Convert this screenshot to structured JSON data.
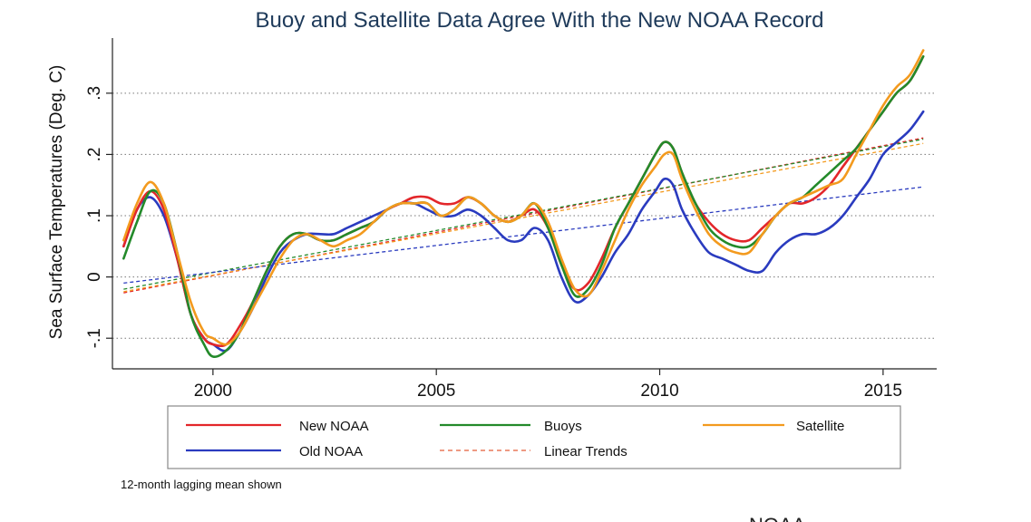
{
  "chart_data": {
    "type": "line",
    "title": "Buoy and Satellite Data Agree With the New NOAA Record",
    "ylabel": "Sea Surface Temperatures (Deg. C)",
    "xlabel": "",
    "xlim": [
      1997.75,
      2016.2
    ],
    "ylim": [
      -0.15,
      0.39
    ],
    "x_ticks": [
      2000,
      2005,
      2010,
      2015
    ],
    "x_tick_labels": [
      "2000",
      "2005",
      "2010",
      "2015"
    ],
    "y_ticks": [
      -0.1,
      0,
      0.1,
      0.2,
      0.3
    ],
    "y_tick_labels": [
      "-.1",
      "0",
      ".1",
      ".2",
      ".3"
    ],
    "grid": "horizontal dotted",
    "note": "12-month lagging mean shown",
    "watermark": "NOAA",
    "series": [
      {
        "name": "New NOAA",
        "color": "#e3262a",
        "style": "solid",
        "x": [
          1998.0,
          1998.3,
          1998.6,
          1998.9,
          1999.2,
          1999.5,
          1999.8,
          2000.0,
          2000.3,
          2000.6,
          2000.9,
          2001.2,
          2001.5,
          2001.8,
          2002.1,
          2002.4,
          2002.7,
          2003.0,
          2003.3,
          2003.6,
          2003.9,
          2004.2,
          2004.5,
          2004.8,
          2005.1,
          2005.4,
          2005.7,
          2006.0,
          2006.3,
          2006.6,
          2006.9,
          2007.2,
          2007.5,
          2007.8,
          2008.1,
          2008.4,
          2008.7,
          2009.0,
          2009.3,
          2009.6,
          2009.9,
          2010.1,
          2010.3,
          2010.5,
          2010.8,
          2011.1,
          2011.4,
          2011.7,
          2012.0,
          2012.3,
          2012.6,
          2012.9,
          2013.2,
          2013.5,
          2013.8,
          2014.1,
          2014.4,
          2014.7,
          2015.0,
          2015.3,
          2015.6,
          2015.9
        ],
        "y": [
          0.05,
          0.11,
          0.14,
          0.11,
          0.03,
          -0.06,
          -0.1,
          -0.11,
          -0.11,
          -0.08,
          -0.04,
          0.01,
          0.05,
          0.07,
          0.07,
          0.06,
          0.06,
          0.07,
          0.08,
          0.09,
          0.11,
          0.12,
          0.13,
          0.13,
          0.12,
          0.12,
          0.13,
          0.12,
          0.1,
          0.09,
          0.1,
          0.11,
          0.08,
          0.02,
          -0.02,
          -0.01,
          0.03,
          0.08,
          0.12,
          0.16,
          0.2,
          0.22,
          0.21,
          0.17,
          0.12,
          0.09,
          0.07,
          0.06,
          0.06,
          0.08,
          0.1,
          0.12,
          0.12,
          0.13,
          0.15,
          0.18,
          0.21,
          0.24,
          0.27,
          0.3,
          0.32,
          0.36
        ]
      },
      {
        "name": "Old NOAA",
        "color": "#2a3bbf",
        "style": "solid",
        "x": [
          1998.0,
          1998.3,
          1998.6,
          1998.9,
          1999.2,
          1999.5,
          1999.8,
          2000.0,
          2000.3,
          2000.6,
          2000.9,
          2001.2,
          2001.5,
          2001.8,
          2002.1,
          2002.4,
          2002.7,
          2003.0,
          2003.3,
          2003.6,
          2003.9,
          2004.2,
          2004.5,
          2004.8,
          2005.1,
          2005.4,
          2005.7,
          2006.0,
          2006.3,
          2006.6,
          2006.9,
          2007.2,
          2007.5,
          2007.8,
          2008.1,
          2008.4,
          2008.7,
          2009.0,
          2009.3,
          2009.6,
          2009.9,
          2010.1,
          2010.3,
          2010.5,
          2010.8,
          2011.1,
          2011.4,
          2011.7,
          2012.0,
          2012.3,
          2012.6,
          2012.9,
          2013.2,
          2013.5,
          2013.8,
          2014.1,
          2014.4,
          2014.7,
          2015.0,
          2015.3,
          2015.6,
          2015.9
        ],
        "y": [
          0.05,
          0.11,
          0.13,
          0.1,
          0.03,
          -0.06,
          -0.1,
          -0.11,
          -0.12,
          -0.09,
          -0.05,
          0.0,
          0.04,
          0.06,
          0.07,
          0.07,
          0.07,
          0.08,
          0.09,
          0.1,
          0.11,
          0.12,
          0.12,
          0.11,
          0.1,
          0.1,
          0.11,
          0.1,
          0.08,
          0.06,
          0.06,
          0.08,
          0.06,
          0.0,
          -0.04,
          -0.03,
          0.0,
          0.04,
          0.07,
          0.11,
          0.14,
          0.16,
          0.15,
          0.11,
          0.07,
          0.04,
          0.03,
          0.02,
          0.01,
          0.01,
          0.04,
          0.06,
          0.07,
          0.07,
          0.08,
          0.1,
          0.13,
          0.16,
          0.2,
          0.22,
          0.24,
          0.27
        ]
      },
      {
        "name": "Buoys",
        "color": "#238a2a",
        "style": "solid",
        "x": [
          1998.0,
          1998.3,
          1998.6,
          1998.9,
          1999.2,
          1999.5,
          1999.8,
          2000.0,
          2000.3,
          2000.6,
          2000.9,
          2001.2,
          2001.5,
          2001.8,
          2002.1,
          2002.4,
          2002.7,
          2003.0,
          2003.3,
          2003.6,
          2003.9,
          2004.2,
          2004.5,
          2004.8,
          2005.1,
          2005.4,
          2005.7,
          2006.0,
          2006.3,
          2006.6,
          2006.9,
          2007.2,
          2007.5,
          2007.8,
          2008.1,
          2008.4,
          2008.7,
          2009.0,
          2009.3,
          2009.6,
          2009.9,
          2010.1,
          2010.3,
          2010.5,
          2010.8,
          2011.1,
          2011.4,
          2011.7,
          2012.0,
          2012.3,
          2012.6,
          2012.9,
          2013.2,
          2013.5,
          2013.8,
          2014.1,
          2014.4,
          2014.7,
          2015.0,
          2015.3,
          2015.6,
          2015.9
        ],
        "y": [
          0.03,
          0.09,
          0.14,
          0.12,
          0.04,
          -0.06,
          -0.11,
          -0.13,
          -0.12,
          -0.09,
          -0.04,
          0.01,
          0.05,
          0.07,
          0.07,
          0.06,
          0.06,
          0.07,
          0.08,
          0.09,
          0.11,
          0.12,
          0.12,
          0.12,
          0.1,
          0.11,
          0.13,
          0.12,
          0.1,
          0.09,
          0.1,
          0.12,
          0.08,
          0.02,
          -0.03,
          -0.02,
          0.02,
          0.08,
          0.12,
          0.16,
          0.2,
          0.22,
          0.21,
          0.17,
          0.12,
          0.08,
          0.06,
          0.05,
          0.05,
          0.07,
          0.1,
          0.12,
          0.13,
          0.15,
          0.17,
          0.19,
          0.21,
          0.24,
          0.27,
          0.3,
          0.32,
          0.36
        ]
      },
      {
        "name": "Satellite",
        "color": "#f39a1e",
        "style": "solid",
        "x": [
          1998.0,
          1998.3,
          1998.6,
          1998.9,
          1999.2,
          1999.5,
          1999.8,
          2000.0,
          2000.3,
          2000.6,
          2000.9,
          2001.2,
          2001.5,
          2001.8,
          2002.1,
          2002.4,
          2002.7,
          2003.0,
          2003.3,
          2003.6,
          2003.9,
          2004.2,
          2004.5,
          2004.8,
          2005.1,
          2005.4,
          2005.7,
          2006.0,
          2006.3,
          2006.6,
          2006.9,
          2007.2,
          2007.5,
          2007.8,
          2008.1,
          2008.4,
          2008.7,
          2009.0,
          2009.3,
          2009.6,
          2009.9,
          2010.1,
          2010.3,
          2010.5,
          2010.8,
          2011.1,
          2011.4,
          2011.7,
          2012.0,
          2012.3,
          2012.6,
          2012.9,
          2013.2,
          2013.5,
          2013.8,
          2014.1,
          2014.4,
          2014.7,
          2015.0,
          2015.3,
          2015.6,
          2015.9
        ],
        "y": [
          0.06,
          0.12,
          0.155,
          0.12,
          0.04,
          -0.04,
          -0.09,
          -0.1,
          -0.11,
          -0.09,
          -0.05,
          -0.01,
          0.03,
          0.06,
          0.07,
          0.06,
          0.05,
          0.06,
          0.07,
          0.09,
          0.11,
          0.12,
          0.12,
          0.12,
          0.1,
          0.11,
          0.13,
          0.12,
          0.1,
          0.09,
          0.1,
          0.12,
          0.09,
          0.03,
          -0.02,
          -0.03,
          0.01,
          0.06,
          0.11,
          0.15,
          0.18,
          0.2,
          0.2,
          0.16,
          0.11,
          0.07,
          0.05,
          0.04,
          0.04,
          0.07,
          0.1,
          0.12,
          0.13,
          0.14,
          0.15,
          0.16,
          0.2,
          0.24,
          0.28,
          0.31,
          0.33,
          0.37
        ]
      }
    ],
    "trends": [
      {
        "name": "New NOAA trend",
        "color": "#e3262a",
        "style": "dashed",
        "x": [
          1998.0,
          2015.9
        ],
        "y": [
          -0.026,
          0.227
        ]
      },
      {
        "name": "Buoys trend",
        "color": "#238a2a",
        "style": "dashed",
        "x": [
          1998.0,
          2015.9
        ],
        "y": [
          -0.02,
          0.225
        ]
      },
      {
        "name": "Satellite trend",
        "color": "#f39a1e",
        "style": "dashed",
        "x": [
          1998.0,
          2015.9
        ],
        "y": [
          -0.024,
          0.218
        ]
      },
      {
        "name": "Old NOAA trend",
        "color": "#2a3bbf",
        "style": "dashed",
        "x": [
          1998.0,
          2015.9
        ],
        "y": [
          -0.01,
          0.147
        ]
      }
    ],
    "legend": {
      "position": "bottom",
      "entries": [
        {
          "label": "New NOAA",
          "color": "#e3262a",
          "style": "solid"
        },
        {
          "label": "Buoys",
          "color": "#238a2a",
          "style": "solid"
        },
        {
          "label": "Satellite",
          "color": "#f39a1e",
          "style": "solid"
        },
        {
          "label": "Old NOAA",
          "color": "#2a3bbf",
          "style": "solid"
        },
        {
          "label": "Linear Trends",
          "color": "#e8785a",
          "style": "dashed"
        }
      ]
    }
  }
}
